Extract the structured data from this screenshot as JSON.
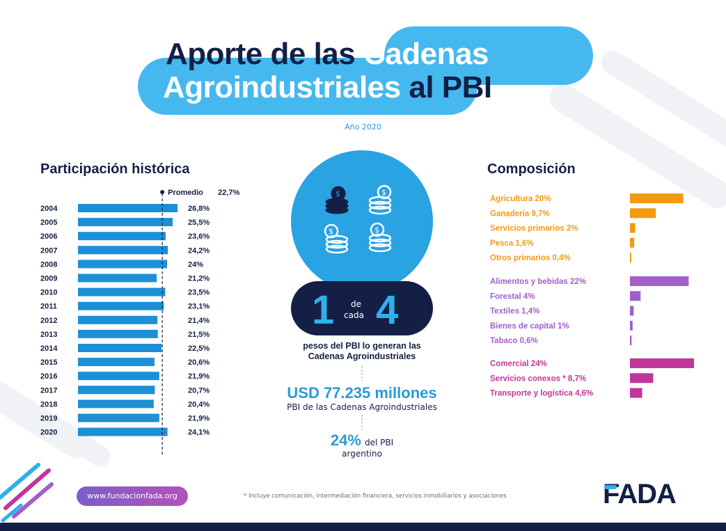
{
  "title": {
    "line1_dark": "Aporte de las",
    "line1_light": "Cadenas",
    "line2_light": "Agroindustriales",
    "line2_dark": "al PBI"
  },
  "subtitle": "Año 2020",
  "center": {
    "ratio_num": "1",
    "ratio_mid1": "de",
    "ratio_mid2": "cada",
    "ratio_den": "4",
    "ratio_caption_1": "pesos del PBI lo generan las",
    "ratio_caption_2": "Cadenas Agroindustriales",
    "usd_value": "USD 77.235 millones",
    "usd_caption": "PBI de las Cadenas Agroindustriales",
    "pct_value": "24%",
    "pct_caption_1": "del PBI",
    "pct_caption_2": "argentino"
  },
  "footer": {
    "url": "www.fundacionfada.org",
    "footnote": "* Incluye comunicación, intermediación financiera, servicios inmobiliarios y asociaciones",
    "logo": "FADA"
  },
  "colors": {
    "navy": "#131f45",
    "blue": "#1d8fd6",
    "light_blue": "#2eb0ea",
    "orange": "#f39a12",
    "purple": "#a35fc9",
    "magenta": "#c0369a"
  },
  "chart_data": [
    {
      "type": "bar",
      "orientation": "horizontal",
      "title": "Participación histórica",
      "categories": [
        "2004",
        "2005",
        "2006",
        "2007",
        "2008",
        "2009",
        "2010",
        "2011",
        "2012",
        "2013",
        "2014",
        "2015",
        "2016",
        "2017",
        "2018",
        "2019",
        "2020"
      ],
      "values": [
        26.8,
        25.5,
        23.6,
        24.2,
        24,
        21.2,
        23.5,
        23.1,
        21.4,
        21.5,
        22.5,
        20.6,
        21.9,
        20.7,
        20.4,
        21.9,
        24.1
      ],
      "value_labels": [
        "26,8%",
        "25,5%",
        "23,6%",
        "24,2%",
        "24%",
        "21,2%",
        "23,5%",
        "23,1%",
        "21,4%",
        "21,5%",
        "22,5%",
        "20,6%",
        "21,9%",
        "20,7%",
        "20,4%",
        "21,9%",
        "24,1%"
      ],
      "reference_line": {
        "label": "Promedio",
        "value": 22.7,
        "value_label": "22,7%"
      },
      "color": "#1d8fd6"
    },
    {
      "type": "bar",
      "orientation": "horizontal",
      "title": "Composición",
      "groups": [
        {
          "color": "#f39a12",
          "items": [
            {
              "label": "Agricultura 20%",
              "value": 20
            },
            {
              "label": "Ganadería 9,7%",
              "value": 9.7
            },
            {
              "label": "Servicios primarios 2%",
              "value": 2
            },
            {
              "label": "Pesca 1,6%",
              "value": 1.6
            },
            {
              "label": "Otros primarios 0,4%",
              "value": 0.4
            }
          ]
        },
        {
          "color": "#a35fc9",
          "items": [
            {
              "label": "Alimentos y bebidas 22%",
              "value": 22
            },
            {
              "label": "Forestal 4%",
              "value": 4
            },
            {
              "label": "Textiles 1,4%",
              "value": 1.4
            },
            {
              "label": "Bienes de capital 1%",
              "value": 1
            },
            {
              "label": "Tabaco 0,6%",
              "value": 0.6
            }
          ]
        },
        {
          "color": "#c0369a",
          "items": [
            {
              "label": "Comercial 24%",
              "value": 24
            },
            {
              "label": "Servicios conexos * 8,7%",
              "value": 8.7
            },
            {
              "label": "Transporte y logística 4,6%",
              "value": 4.6
            }
          ]
        }
      ]
    }
  ]
}
